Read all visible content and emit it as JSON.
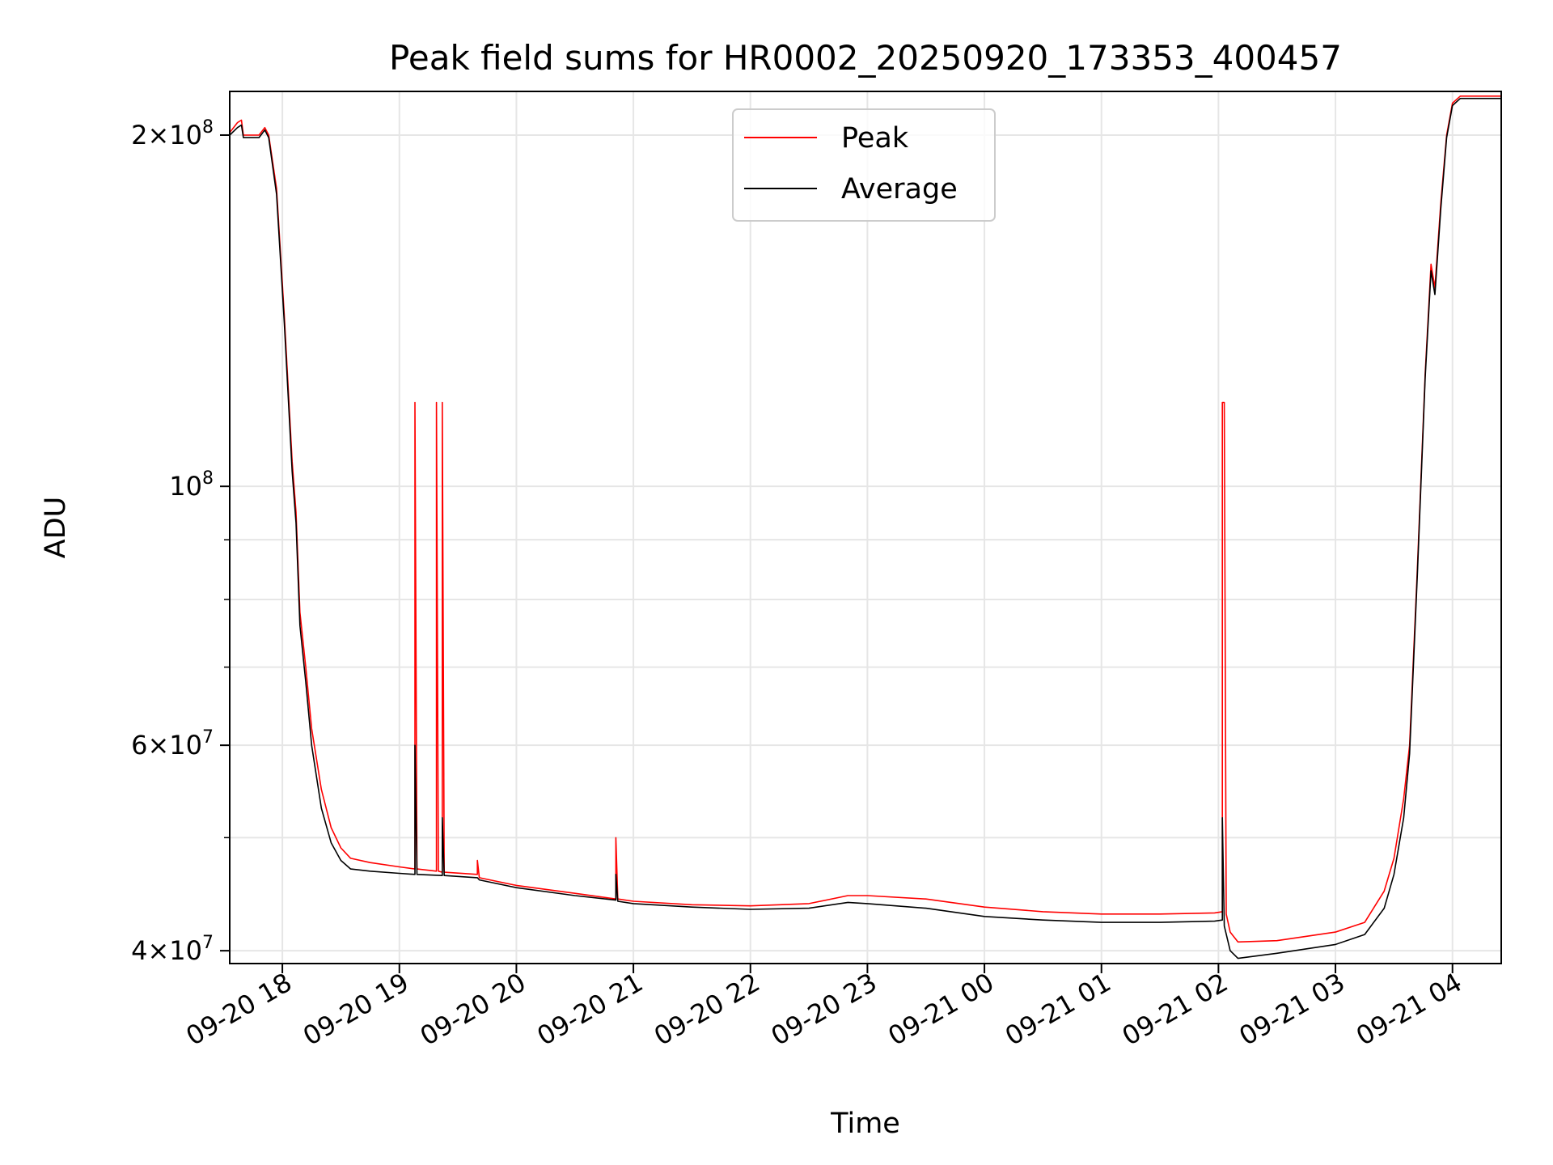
{
  "chart_data": {
    "type": "line",
    "title": "Peak field sums for HR0002_20250920_173353_400457",
    "xlabel": "Time",
    "ylabel": "ADU",
    "x_scale": "time",
    "y_scale": "log",
    "grid": true,
    "legend": "upper center",
    "xlim": [
      "2025-09-20 17:33",
      "2025-09-21 04:25"
    ],
    "ylim": [
      39000000,
      218000000
    ],
    "x_ticks": [
      "2025-09-20 18:00",
      "2025-09-20 19:00",
      "2025-09-20 20:00",
      "2025-09-20 21:00",
      "2025-09-20 22:00",
      "2025-09-20 23:00",
      "2025-09-21 00:00",
      "2025-09-21 01:00",
      "2025-09-21 02:00",
      "2025-09-21 03:00",
      "2025-09-21 04:00"
    ],
    "x_tick_labels": [
      "09-20 18",
      "09-20 19",
      "09-20 20",
      "09-20 21",
      "09-20 22",
      "09-20 23",
      "09-21 00",
      "09-21 01",
      "09-21 02",
      "09-21 03",
      "09-21 04"
    ],
    "y_major_ticks": [
      {
        "value": 40000000,
        "mantissa": "4",
        "exp": "7"
      },
      {
        "value": 60000000,
        "mantissa": "6",
        "exp": "7"
      },
      {
        "value": 100000000,
        "mantissa": "",
        "exp": "8"
      },
      {
        "value": 200000000,
        "mantissa": "2",
        "exp": "8"
      }
    ],
    "y_minor_ticks": [
      50000000,
      70000000,
      80000000,
      90000000
    ],
    "series": [
      {
        "name": "Peak",
        "color": "#ff0000",
        "points": [
          [
            "2025-09-20 17:33",
            201000000
          ],
          [
            "2025-09-20 17:37",
            205000000
          ],
          [
            "2025-09-20 17:39",
            206000000
          ],
          [
            "2025-09-20 17:40",
            200000000
          ],
          [
            "2025-09-20 17:48",
            200000000
          ],
          [
            "2025-09-20 17:51",
            203000000
          ],
          [
            "2025-09-20 17:53",
            200000000
          ],
          [
            "2025-09-20 17:57",
            180000000
          ],
          [
            "2025-09-20 18:01",
            140000000
          ],
          [
            "2025-09-20 18:05",
            105000000
          ],
          [
            "2025-09-20 18:07",
            95000000
          ],
          [
            "2025-09-20 18:09",
            78000000
          ],
          [
            "2025-09-20 18:12",
            70000000
          ],
          [
            "2025-09-20 18:15",
            62000000
          ],
          [
            "2025-09-20 18:20",
            55000000
          ],
          [
            "2025-09-20 18:25",
            51000000
          ],
          [
            "2025-09-20 18:30",
            49000000
          ],
          [
            "2025-09-20 18:35",
            48000000
          ],
          [
            "2025-09-20 18:45",
            47600000
          ],
          [
            "2025-09-20 19:00",
            47200000
          ],
          [
            "2025-09-20 19:08",
            47000000
          ],
          [
            "2025-09-20 19:08",
            118000000
          ],
          [
            "2025-09-20 19:09",
            47000000
          ],
          [
            "2025-09-20 19:19",
            46800000
          ],
          [
            "2025-09-20 19:19",
            118000000
          ],
          [
            "2025-09-20 19:20",
            46800000
          ],
          [
            "2025-09-20 19:22",
            46700000
          ],
          [
            "2025-09-20 19:22",
            118000000
          ],
          [
            "2025-09-20 19:23",
            46700000
          ],
          [
            "2025-09-20 19:40",
            46500000
          ],
          [
            "2025-09-20 19:40",
            47800000
          ],
          [
            "2025-09-20 19:41",
            46200000
          ],
          [
            "2025-09-20 20:00",
            45500000
          ],
          [
            "2025-09-20 20:30",
            44800000
          ],
          [
            "2025-09-20 20:51",
            44300000
          ],
          [
            "2025-09-20 20:51",
            50000000
          ],
          [
            "2025-09-20 20:52",
            44300000
          ],
          [
            "2025-09-20 21:00",
            44100000
          ],
          [
            "2025-09-20 21:30",
            43800000
          ],
          [
            "2025-09-20 22:00",
            43700000
          ],
          [
            "2025-09-20 22:30",
            43900000
          ],
          [
            "2025-09-20 22:50",
            44600000
          ],
          [
            "2025-09-20 23:00",
            44600000
          ],
          [
            "2025-09-20 23:30",
            44300000
          ],
          [
            "2025-09-21 00:00",
            43600000
          ],
          [
            "2025-09-21 00:30",
            43200000
          ],
          [
            "2025-09-21 01:00",
            43000000
          ],
          [
            "2025-09-21 01:30",
            43000000
          ],
          [
            "2025-09-21 01:58",
            43100000
          ],
          [
            "2025-09-21 02:02",
            43200000
          ],
          [
            "2025-09-21 02:02",
            118000000
          ],
          [
            "2025-09-21 02:03",
            118000000
          ],
          [
            "2025-09-21 02:04",
            43000000
          ],
          [
            "2025-09-21 02:06",
            41500000
          ],
          [
            "2025-09-21 02:10",
            40700000
          ],
          [
            "2025-09-21 02:30",
            40800000
          ],
          [
            "2025-09-21 03:00",
            41500000
          ],
          [
            "2025-09-21 03:15",
            42300000
          ],
          [
            "2025-09-21 03:25",
            45000000
          ],
          [
            "2025-09-21 03:30",
            48000000
          ],
          [
            "2025-09-21 03:35",
            54000000
          ],
          [
            "2025-09-21 03:38",
            60000000
          ],
          [
            "2025-09-21 03:42",
            85000000
          ],
          [
            "2025-09-21 03:46",
            125000000
          ],
          [
            "2025-09-21 03:49",
            155000000
          ],
          [
            "2025-09-21 03:51",
            148000000
          ],
          [
            "2025-09-21 03:54",
            175000000
          ],
          [
            "2025-09-21 03:57",
            200000000
          ],
          [
            "2025-09-21 04:00",
            213000000
          ],
          [
            "2025-09-21 04:04",
            216000000
          ],
          [
            "2025-09-21 04:25",
            216000000
          ]
        ]
      },
      {
        "name": "Average",
        "color": "#000000",
        "points": [
          [
            "2025-09-20 17:33",
            200000000
          ],
          [
            "2025-09-20 17:37",
            203000000
          ],
          [
            "2025-09-20 17:39",
            204000000
          ],
          [
            "2025-09-20 17:40",
            199000000
          ],
          [
            "2025-09-20 17:48",
            199000000
          ],
          [
            "2025-09-20 17:51",
            202000000
          ],
          [
            "2025-09-20 17:53",
            199000000
          ],
          [
            "2025-09-20 17:57",
            178000000
          ],
          [
            "2025-09-20 18:01",
            138000000
          ],
          [
            "2025-09-20 18:05",
            103000000
          ],
          [
            "2025-09-20 18:07",
            93000000
          ],
          [
            "2025-09-20 18:09",
            76000000
          ],
          [
            "2025-09-20 18:12",
            68000000
          ],
          [
            "2025-09-20 18:15",
            60000000
          ],
          [
            "2025-09-20 18:20",
            53000000
          ],
          [
            "2025-09-20 18:25",
            49500000
          ],
          [
            "2025-09-20 18:30",
            47800000
          ],
          [
            "2025-09-20 18:35",
            47000000
          ],
          [
            "2025-09-20 18:45",
            46800000
          ],
          [
            "2025-09-20 19:00",
            46600000
          ],
          [
            "2025-09-20 19:08",
            46500000
          ],
          [
            "2025-09-20 19:08",
            60000000
          ],
          [
            "2025-09-20 19:09",
            46500000
          ],
          [
            "2025-09-20 19:22",
            46400000
          ],
          [
            "2025-09-20 19:22",
            52000000
          ],
          [
            "2025-09-20 19:23",
            46400000
          ],
          [
            "2025-09-20 19:40",
            46200000
          ],
          [
            "2025-09-20 19:41",
            46000000
          ],
          [
            "2025-09-20 20:00",
            45300000
          ],
          [
            "2025-09-20 20:30",
            44600000
          ],
          [
            "2025-09-20 20:51",
            44200000
          ],
          [
            "2025-09-20 20:51",
            46500000
          ],
          [
            "2025-09-20 20:52",
            44100000
          ],
          [
            "2025-09-20 21:00",
            43900000
          ],
          [
            "2025-09-20 21:30",
            43600000
          ],
          [
            "2025-09-20 22:00",
            43400000
          ],
          [
            "2025-09-20 22:30",
            43500000
          ],
          [
            "2025-09-20 22:50",
            44000000
          ],
          [
            "2025-09-20 23:00",
            43900000
          ],
          [
            "2025-09-20 23:30",
            43500000
          ],
          [
            "2025-09-21 00:00",
            42800000
          ],
          [
            "2025-09-21 00:30",
            42500000
          ],
          [
            "2025-09-21 01:00",
            42300000
          ],
          [
            "2025-09-21 01:30",
            42300000
          ],
          [
            "2025-09-21 01:58",
            42400000
          ],
          [
            "2025-09-21 02:02",
            42500000
          ],
          [
            "2025-09-21 02:02",
            52000000
          ],
          [
            "2025-09-21 02:03",
            42000000
          ],
          [
            "2025-09-21 02:06",
            40000000
          ],
          [
            "2025-09-21 02:10",
            39400000
          ],
          [
            "2025-09-21 02:30",
            39800000
          ],
          [
            "2025-09-21 03:00",
            40500000
          ],
          [
            "2025-09-21 03:15",
            41300000
          ],
          [
            "2025-09-21 03:25",
            43500000
          ],
          [
            "2025-09-21 03:30",
            46500000
          ],
          [
            "2025-09-21 03:35",
            52000000
          ],
          [
            "2025-09-21 03:38",
            59000000
          ],
          [
            "2025-09-21 03:42",
            84000000
          ],
          [
            "2025-09-21 03:46",
            124000000
          ],
          [
            "2025-09-21 03:49",
            153000000
          ],
          [
            "2025-09-21 03:51",
            146000000
          ],
          [
            "2025-09-21 03:54",
            173000000
          ],
          [
            "2025-09-21 03:57",
            199000000
          ],
          [
            "2025-09-21 04:00",
            212000000
          ],
          [
            "2025-09-21 04:04",
            215000000
          ],
          [
            "2025-09-21 04:25",
            215000000
          ]
        ]
      }
    ]
  }
}
